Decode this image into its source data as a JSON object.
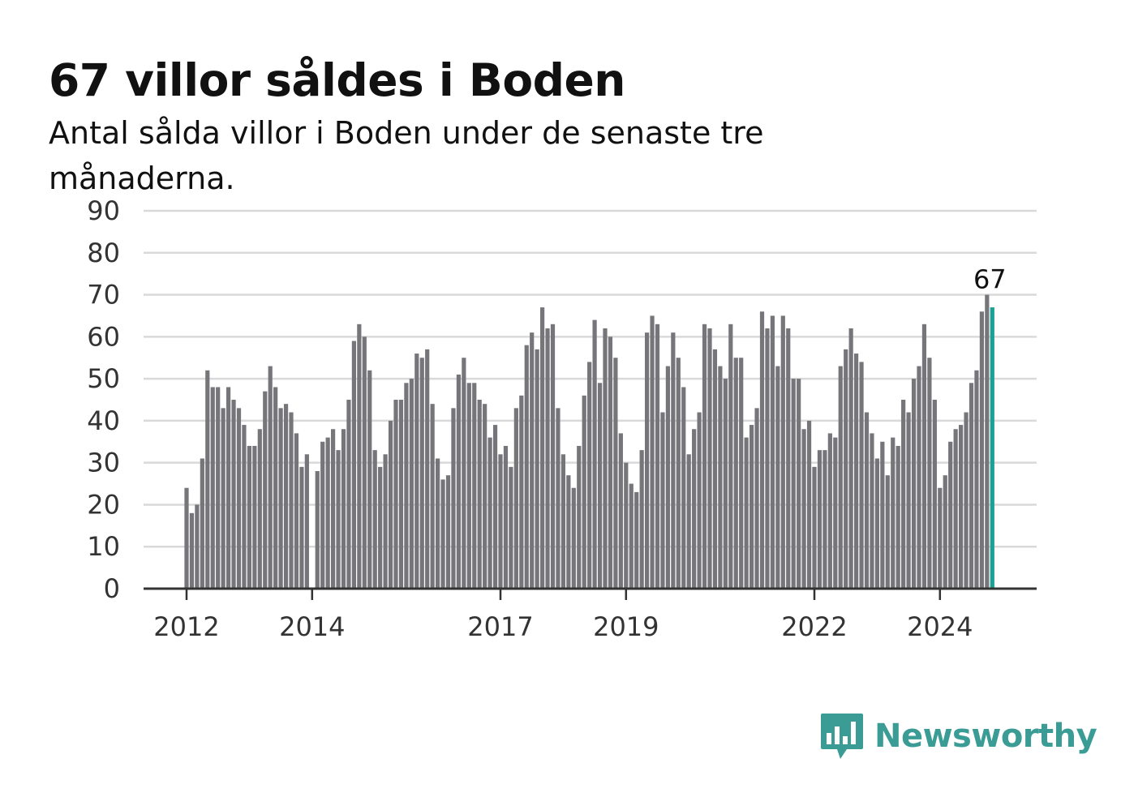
{
  "header": {
    "title": "67 villor såldes i Boden",
    "subtitle": "Antal sålda villor i Boden under de senaste tre månaderna."
  },
  "brand": {
    "name": "Newsworthy"
  },
  "colors": {
    "bar": "#76767a",
    "highlight": "#1aa095",
    "grid": "#d9d9d9",
    "axis": "#333333",
    "brand": "#3a9c95"
  },
  "chart_data": {
    "type": "bar",
    "x_tick_labels": [
      "2012",
      "2014",
      "2017",
      "2019",
      "2022",
      "2024"
    ],
    "y_tick_labels": [
      "0",
      "10",
      "20",
      "30",
      "40",
      "50",
      "60",
      "70",
      "80",
      "90"
    ],
    "ylim": [
      0,
      90
    ],
    "grid": true,
    "start": "2012-01",
    "values": [
      24,
      18,
      20,
      31,
      52,
      48,
      48,
      43,
      48,
      45,
      43,
      39,
      34,
      34,
      38,
      47,
      53,
      48,
      43,
      44,
      42,
      37,
      29,
      32,
      0,
      28,
      35,
      36,
      38,
      33,
      38,
      45,
      59,
      63,
      60,
      52,
      33,
      29,
      32,
      40,
      45,
      45,
      49,
      50,
      56,
      55,
      57,
      44,
      31,
      26,
      27,
      43,
      51,
      55,
      49,
      49,
      45,
      44,
      36,
      39,
      32,
      34,
      29,
      43,
      46,
      58,
      61,
      57,
      67,
      62,
      63,
      43,
      32,
      27,
      24,
      34,
      46,
      54,
      64,
      49,
      62,
      60,
      55,
      37,
      30,
      25,
      23,
      33,
      61,
      65,
      63,
      42,
      53,
      61,
      55,
      48,
      32,
      38,
      42,
      63,
      62,
      57,
      53,
      50,
      63,
      55,
      55,
      36,
      39,
      43,
      66,
      62,
      65,
      53,
      65,
      62,
      50,
      50,
      38,
      40,
      29,
      33,
      33,
      37,
      36,
      53,
      57,
      62,
      56,
      54,
      42,
      37,
      31,
      35,
      27,
      36,
      34,
      45,
      42,
      50,
      53,
      63,
      55,
      45,
      24,
      27,
      35,
      38,
      39,
      42,
      49,
      52,
      66,
      70,
      67
    ],
    "highlight": {
      "label": "67",
      "value": 67
    }
  }
}
